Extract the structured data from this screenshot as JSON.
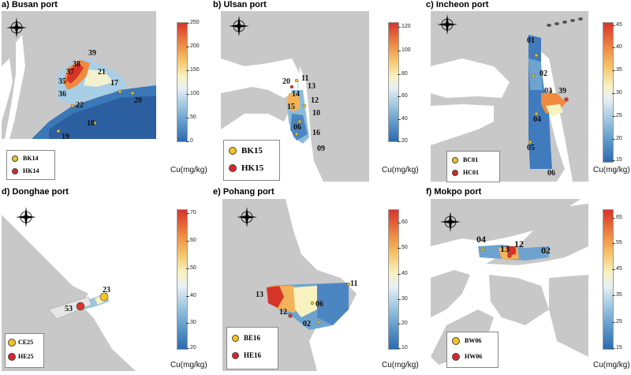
{
  "panels": {
    "a": {
      "title": "a) Busan port",
      "legend": [
        "BK14",
        "HK14"
      ],
      "scale_ticks": [
        "250",
        "200",
        "150",
        "100",
        "50",
        "0"
      ],
      "unit": "Cu(mg/kg)",
      "sites": [
        "39",
        "38",
        "37",
        "21",
        "17",
        "35",
        "36",
        "22",
        "20",
        "18",
        "19"
      ]
    },
    "b": {
      "title": "b) Ulsan port",
      "legend": [
        "BK15",
        "HK15"
      ],
      "scale_ticks": [
        "120",
        "100",
        "80",
        "60",
        "40",
        "20"
      ],
      "unit": "Cu(mg/kg)",
      "sites": [
        "20",
        "11",
        "13",
        "14",
        "12",
        "15",
        "10",
        "06",
        "16",
        "09"
      ]
    },
    "c": {
      "title": "c) Incheon port",
      "legend": [
        "BC01",
        "HC01"
      ],
      "scale_ticks": [
        "45",
        "40",
        "35",
        "30",
        "25",
        "20",
        "15"
      ],
      "unit": "Cu(mg/kg)",
      "sites": [
        "01",
        "02",
        "03",
        "39",
        "04",
        "05",
        "06"
      ]
    },
    "d": {
      "title": "d) Donghae port",
      "legend": [
        "CE25",
        "HE25"
      ],
      "scale_ticks": [
        "70",
        "60",
        "50",
        "40",
        "30",
        "20"
      ],
      "unit": "Cu(mg/kg)",
      "sites": [
        "23",
        "53"
      ]
    },
    "e": {
      "title": "e) Pohang port",
      "legend": [
        "BE16",
        "HE16"
      ],
      "scale_ticks": [
        "60",
        "50",
        "40",
        "30",
        "20",
        "10"
      ],
      "unit": "Cu(mg/kg)",
      "sites": [
        "11",
        "13",
        "06",
        "12",
        "02"
      ]
    },
    "f": {
      "title": "f) Mokpo port",
      "legend": [
        "BW06",
        "HW06"
      ],
      "scale_ticks": [
        "65",
        "55",
        "45",
        "35",
        "25",
        "15"
      ],
      "unit": "Cu(mg/kg)",
      "sites": [
        "04",
        "13",
        "12",
        "02"
      ]
    }
  },
  "colors": {
    "high": "#d7342a",
    "mid": "#f7f2c0",
    "low": "#2c6ab0",
    "land": "#c8c8c8"
  },
  "compass_letters": [
    "N",
    "E",
    "S",
    "W"
  ]
}
